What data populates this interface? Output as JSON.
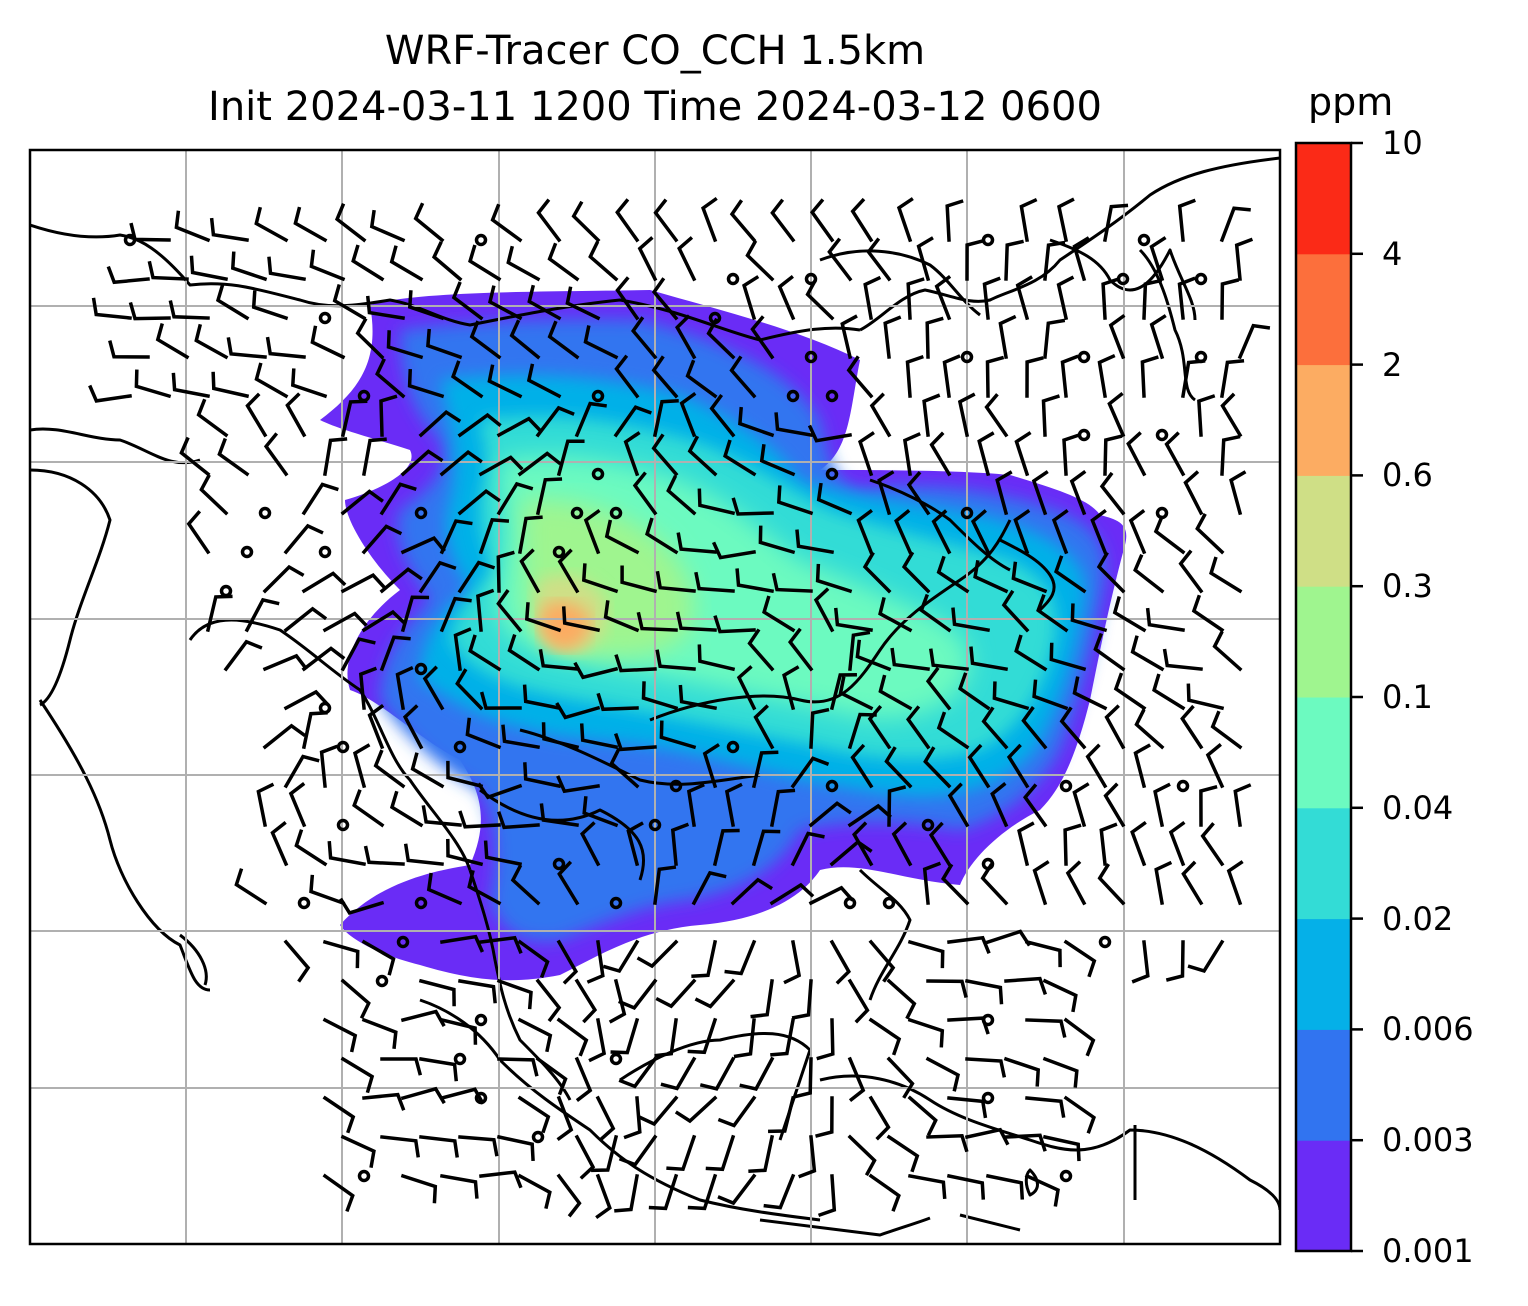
{
  "title": {
    "line1": "WRF-Tracer CO_CCH 1.5km",
    "line2": "Init 2024-03-11 1200 Time 2024-03-12 0600"
  },
  "colorbar": {
    "unit": "ppm",
    "levels": [
      "0.001",
      "0.003",
      "0.006",
      "0.02",
      "0.04",
      "0.1",
      "0.3",
      "0.6",
      "2",
      "4",
      "10"
    ],
    "colors": [
      "#6a2cf6",
      "#3174f0",
      "#05b0e8",
      "#33dcd6",
      "#6cfac0",
      "#9ff58f",
      "#cfdf86",
      "#fcac62",
      "#fc6f3c",
      "#fb2a17"
    ]
  },
  "map": {
    "field": "CO_CCH tracer concentration at 1.5km",
    "gridlines": true,
    "overlay": "wind barbs"
  }
}
